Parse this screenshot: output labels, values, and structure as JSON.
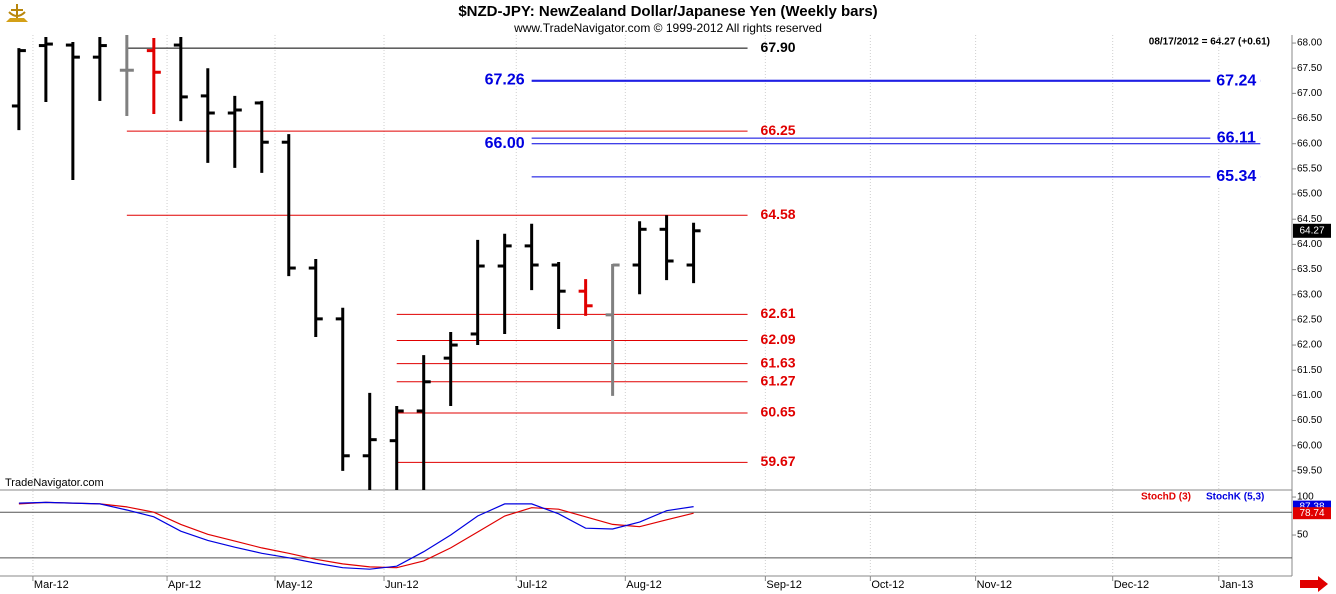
{
  "chart_data": [
    {
      "type": "ohlc",
      "title": "$NZD-JPY:  NewZealand Dollar/Japanese Yen  (Weekly bars)",
      "subtitle": "www.TradeNavigator.com © 1999-2012 All rights reserved",
      "info": "08/17/2012 = 64.27 (+0.61)",
      "watermark": "TradeNavigator.com",
      "x": [
        0,
        1,
        2,
        3,
        4,
        5,
        6,
        7,
        8,
        9,
        10,
        11,
        12,
        13,
        14,
        15,
        16,
        17,
        18,
        19,
        20,
        21,
        22,
        23,
        24,
        25
      ],
      "open": [
        66.75,
        67.95,
        67.96,
        67.72,
        67.46,
        67.85,
        67.96,
        66.95,
        66.61,
        66.81,
        66.03,
        63.53,
        62.52,
        59.8,
        60.1,
        60.69,
        61.74,
        62.22,
        63.57,
        63.97,
        63.59,
        63.07,
        62.6,
        63.59,
        64.3,
        63.59
      ],
      "high": [
        67.9,
        68.12,
        68.02,
        68.12,
        68.16,
        68.1,
        68.12,
        67.5,
        66.95,
        66.85,
        66.19,
        63.71,
        62.74,
        61.05,
        60.79,
        61.8,
        62.26,
        64.09,
        64.21,
        64.41,
        63.65,
        63.31,
        63.61,
        64.46,
        64.58,
        64.43
      ],
      "low": [
        66.27,
        66.83,
        65.28,
        66.85,
        66.55,
        66.59,
        66.45,
        65.62,
        65.52,
        65.42,
        63.37,
        62.16,
        59.5,
        59.12,
        59.12,
        59.12,
        60.79,
        62.0,
        62.22,
        63.09,
        62.32,
        62.58,
        60.99,
        63.01,
        63.29,
        63.23
      ],
      "close": [
        67.85,
        67.98,
        67.72,
        67.95,
        67.46,
        67.42,
        66.93,
        66.61,
        66.67,
        66.03,
        63.53,
        62.52,
        59.8,
        60.12,
        60.69,
        61.27,
        62.0,
        63.57,
        63.97,
        63.59,
        63.07,
        62.78,
        63.59,
        64.3,
        63.67,
        64.27
      ],
      "colors": [
        "#000000",
        "#000000",
        "#000000",
        "#000000",
        "#808080",
        "#e00000",
        "#000000",
        "#000000",
        "#000000",
        "#000000",
        "#000000",
        "#000000",
        "#000000",
        "#000000",
        "#000000",
        "#000000",
        "#000000",
        "#000000",
        "#000000",
        "#000000",
        "#000000",
        "#e00000",
        "#808080",
        "#000000",
        "#000000",
        "#000000"
      ],
      "xlim": [
        -0.7,
        47.1
      ],
      "xticks": [
        {
          "value": 0.52,
          "label": "Mar-12"
        },
        {
          "value": 5.49,
          "label": "Apr-12"
        },
        {
          "value": 9.49,
          "label": "May-12"
        },
        {
          "value": 13.53,
          "label": "Jun-12"
        },
        {
          "value": 18.43,
          "label": "Jul-12"
        },
        {
          "value": 22.47,
          "label": "Aug-12"
        },
        {
          "value": 27.66,
          "label": "Sep-12"
        },
        {
          "value": 31.55,
          "label": "Oct-12"
        },
        {
          "value": 35.45,
          "label": "Nov-12"
        },
        {
          "value": 40.53,
          "label": "Dec-12"
        },
        {
          "value": 44.46,
          "label": "Jan-13"
        }
      ],
      "ylim": [
        59.12,
        68.16
      ],
      "yticks": [
        {
          "value": 59.5,
          "label": "59.50"
        },
        {
          "value": 60,
          "label": "60.00"
        },
        {
          "value": 60.5,
          "label": "60.50"
        },
        {
          "value": 61,
          "label": "61.00"
        },
        {
          "value": 61.5,
          "label": "61.50"
        },
        {
          "value": 62,
          "label": "62.00"
        },
        {
          "value": 62.5,
          "label": "62.50"
        },
        {
          "value": 63,
          "label": "63.00"
        },
        {
          "value": 63.5,
          "label": "63.50"
        },
        {
          "value": 64,
          "label": "64.00"
        },
        {
          "value": 64.5,
          "label": "64.50"
        },
        {
          "value": 65,
          "label": "65.00"
        },
        {
          "value": 65.5,
          "label": "65.50"
        },
        {
          "value": 66,
          "label": "66.00"
        },
        {
          "value": 66.5,
          "label": "66.50"
        },
        {
          "value": 67,
          "label": "67.00"
        },
        {
          "value": 67.5,
          "label": "67.50"
        },
        {
          "value": 68,
          "label": "68.00"
        }
      ],
      "levels": [
        {
          "value": 67.9,
          "label": "67.90",
          "color": "#000000",
          "x": [
            4,
            27
          ],
          "label_side": "right"
        },
        {
          "value": 67.26,
          "label": "67.26",
          "color": "#0000e0",
          "x": [
            19,
            46
          ],
          "label_side": "left"
        },
        {
          "value": 67.24,
          "label": "67.24",
          "color": "#0000e0",
          "x": [
            19,
            46
          ],
          "label_side": "right"
        },
        {
          "value": 66.25,
          "label": "66.25",
          "color": "#e00000",
          "x": [
            4,
            27
          ],
          "label_side": "right"
        },
        {
          "value": 66.11,
          "label": "66.11",
          "color": "#0000e0",
          "x": [
            19,
            46
          ],
          "label_side": "right"
        },
        {
          "value": 66,
          "label": "66.00",
          "color": "#0000e0",
          "x": [
            19,
            46
          ],
          "label_side": "left"
        },
        {
          "value": 65.34,
          "label": "65.34",
          "color": "#0000e0",
          "x": [
            19,
            46
          ],
          "label_side": "right"
        },
        {
          "value": 64.58,
          "label": "64.58",
          "color": "#e00000",
          "x": [
            4,
            27
          ],
          "label_side": "right"
        },
        {
          "value": 62.61,
          "label": "62.61",
          "color": "#e00000",
          "x": [
            14,
            27
          ],
          "label_side": "right"
        },
        {
          "value": 62.09,
          "label": "62.09",
          "color": "#e00000",
          "x": [
            14,
            27
          ],
          "label_side": "right"
        },
        {
          "value": 61.63,
          "label": "61.63",
          "color": "#e00000",
          "x": [
            14,
            27
          ],
          "label_side": "right"
        },
        {
          "value": 61.27,
          "label": "61.27",
          "color": "#e00000",
          "x": [
            14,
            27
          ],
          "label_side": "right"
        },
        {
          "value": 60.65,
          "label": "60.65",
          "color": "#e00000",
          "x": [
            14,
            27
          ],
          "label_side": "right"
        },
        {
          "value": 59.67,
          "label": "59.67",
          "color": "#e00000",
          "x": [
            14,
            27
          ],
          "label_side": "right"
        }
      ],
      "last": {
        "value": 64.27,
        "label": "64.27"
      }
    },
    {
      "type": "line",
      "series": [
        {
          "name": "StochD (3)",
          "color": "#e00000",
          "values": [
            91,
            93,
            92,
            91,
            87,
            80,
            64,
            51,
            42,
            33,
            26,
            18,
            12,
            8,
            7,
            16,
            33,
            54,
            75,
            86,
            84,
            74,
            64,
            61,
            70,
            78.74
          ],
          "value_labels": [
            null,
            null,
            null,
            null,
            null,
            null,
            null,
            null,
            null,
            null,
            null,
            null,
            null,
            null,
            null,
            null,
            null,
            null,
            null,
            null,
            null,
            null,
            null,
            null,
            null,
            "78.74"
          ]
        },
        {
          "name": "StochK (5,3)",
          "color": "#0000e0",
          "values": [
            92,
            93,
            92,
            91,
            83,
            74,
            55,
            43,
            34,
            26,
            20,
            13,
            7,
            5,
            9,
            28,
            50,
            75,
            91,
            91,
            78,
            59,
            58,
            67,
            82,
            87.38
          ],
          "value_labels": [
            null,
            null,
            null,
            null,
            null,
            null,
            null,
            null,
            null,
            null,
            null,
            null,
            null,
            null,
            null,
            null,
            null,
            null,
            null,
            null,
            null,
            null,
            null,
            null,
            null,
            "87.38"
          ]
        }
      ],
      "ylim": [
        -2.6,
        104
      ],
      "yticks": [
        50,
        100
      ],
      "hlines": [
        80,
        20
      ]
    }
  ]
}
